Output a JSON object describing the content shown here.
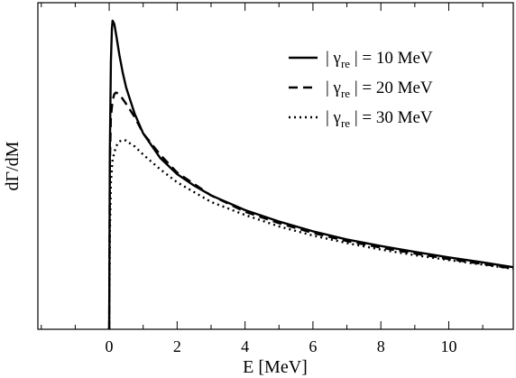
{
  "chart_data": {
    "type": "line",
    "xlabel": "E [MeV]",
    "ylabel": "dΓ/dM",
    "xlim": [
      -2.1,
      11.9
    ],
    "ylim": [
      0,
      1.0
    ],
    "xticks": [
      0,
      2,
      4,
      6,
      8,
      10
    ],
    "xtick_labels": [
      "0",
      "2",
      "4",
      "6",
      "8",
      "10"
    ],
    "y_tick_labels_shown": false,
    "grid": false,
    "legend_position": "top-right",
    "series": [
      {
        "name": "| γre | = 10 MeV",
        "legend_parts": {
          "pre": "| γ",
          "sub": "re",
          "post": " | = 10 MeV"
        },
        "style": "solid",
        "color": "#000000",
        "x": [
          0.0,
          0.02,
          0.05,
          0.08,
          0.1,
          0.15,
          0.2,
          0.3,
          0.4,
          0.5,
          0.75,
          1.0,
          1.5,
          2.0,
          2.5,
          3.0,
          4.0,
          5.0,
          6.0,
          7.0,
          8.0,
          9.0,
          10.0,
          11.0,
          11.9
        ],
        "y": [
          0.0,
          0.55,
          0.82,
          0.92,
          0.945,
          0.935,
          0.905,
          0.84,
          0.785,
          0.74,
          0.66,
          0.6,
          0.525,
          0.475,
          0.44,
          0.41,
          0.365,
          0.33,
          0.3,
          0.275,
          0.255,
          0.237,
          0.22,
          0.205,
          0.19
        ]
      },
      {
        "name": "| γre | = 20 MeV",
        "legend_parts": {
          "pre": "| γ",
          "sub": "re",
          "post": " | = 20 MeV"
        },
        "style": "dashed",
        "color": "#000000",
        "x": [
          0.0,
          0.02,
          0.05,
          0.1,
          0.15,
          0.2,
          0.3,
          0.4,
          0.5,
          0.75,
          1.0,
          1.5,
          2.0,
          2.5,
          3.0,
          4.0,
          5.0,
          6.0,
          7.0,
          8.0,
          9.0,
          10.0,
          11.0,
          11.9
        ],
        "y": [
          0.0,
          0.5,
          0.65,
          0.7,
          0.72,
          0.725,
          0.72,
          0.705,
          0.69,
          0.65,
          0.6,
          0.535,
          0.48,
          0.445,
          0.41,
          0.36,
          0.325,
          0.295,
          0.27,
          0.25,
          0.232,
          0.215,
          0.2,
          0.186
        ]
      },
      {
        "name": "| γre | = 30 MeV",
        "legend_parts": {
          "pre": "| γ",
          "sub": "re",
          "post": " | = 30 MeV"
        },
        "style": "dotted",
        "color": "#000000",
        "x": [
          0.0,
          0.02,
          0.05,
          0.1,
          0.2,
          0.3,
          0.4,
          0.5,
          0.6,
          0.75,
          1.0,
          1.5,
          2.0,
          2.5,
          3.0,
          4.0,
          5.0,
          6.0,
          7.0,
          8.0,
          9.0,
          10.0,
          11.0,
          11.9
        ],
        "y": [
          0.0,
          0.3,
          0.45,
          0.52,
          0.56,
          0.575,
          0.58,
          0.578,
          0.57,
          0.56,
          0.535,
          0.49,
          0.45,
          0.42,
          0.39,
          0.35,
          0.315,
          0.287,
          0.264,
          0.244,
          0.227,
          0.212,
          0.198,
          0.185
        ]
      }
    ]
  }
}
